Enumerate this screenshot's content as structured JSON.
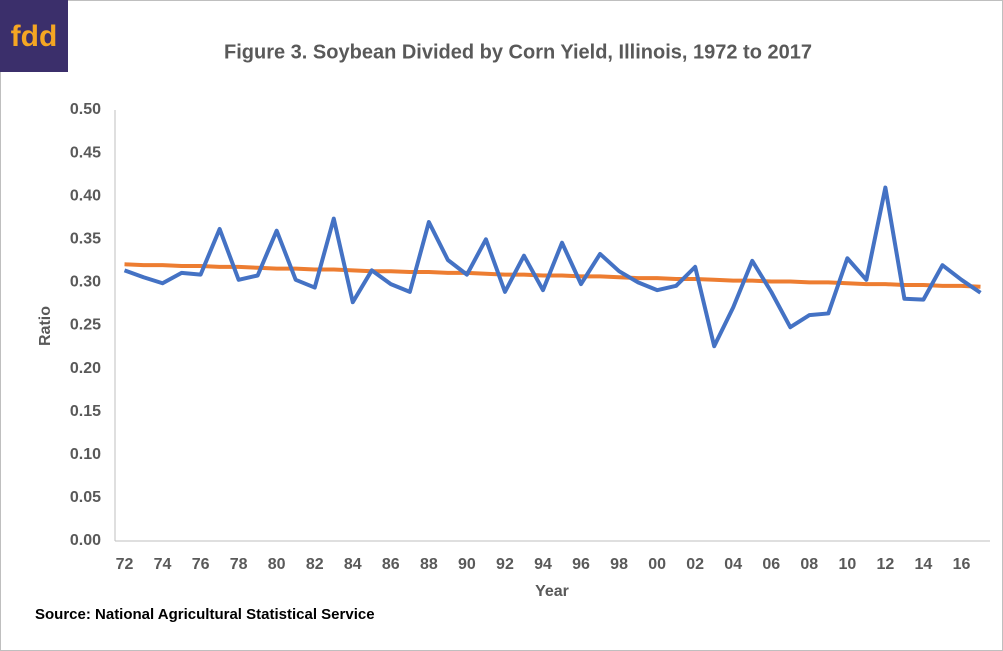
{
  "logo": "fdd",
  "source": "Source: National Agricultural Statistical Service",
  "chart_data": {
    "type": "line",
    "title": "Figure 3.  Soybean Divided by Corn Yield, Illinois, 1972 to 2017",
    "x_label": "Year",
    "y_label": "Ratio",
    "categories": [
      "72",
      null,
      "74",
      null,
      "76",
      null,
      "78",
      null,
      "80",
      null,
      "82",
      null,
      "84",
      null,
      "86",
      null,
      "88",
      null,
      "90",
      null,
      "92",
      null,
      "94",
      null,
      "96",
      null,
      "98",
      null,
      "00",
      null,
      "02",
      null,
      "04",
      null,
      "06",
      null,
      "08",
      null,
      "10",
      null,
      "12",
      null,
      "14",
      null,
      "16",
      null
    ],
    "series": [
      {
        "color": "#4472c4",
        "values": [
          0.314,
          0.306,
          0.299,
          0.311,
          0.309,
          0.362,
          0.303,
          0.308,
          0.36,
          0.303,
          0.294,
          0.374,
          0.277,
          0.314,
          0.298,
          0.289,
          0.37,
          0.326,
          0.309,
          0.35,
          0.289,
          0.331,
          0.291,
          0.346,
          0.298,
          0.333,
          0.313,
          0.3,
          0.291,
          0.296,
          0.318,
          0.226,
          0.271,
          0.325,
          0.289,
          0.248,
          0.262,
          0.264,
          0.328,
          0.303,
          0.41,
          0.281,
          0.28,
          0.32,
          0.303,
          0.288
        ]
      },
      {
        "color": "#ed7d31",
        "values": [
          0.321,
          0.32,
          0.32,
          0.319,
          0.319,
          0.318,
          0.318,
          0.317,
          0.316,
          0.316,
          0.315,
          0.315,
          0.314,
          0.313,
          0.313,
          0.312,
          0.312,
          0.311,
          0.311,
          0.31,
          0.309,
          0.309,
          0.308,
          0.308,
          0.307,
          0.307,
          0.306,
          0.305,
          0.305,
          0.304,
          0.304,
          0.303,
          0.302,
          0.302,
          0.301,
          0.301,
          0.3,
          0.3,
          0.299,
          0.298,
          0.298,
          0.297,
          0.297,
          0.296,
          0.296,
          0.295
        ]
      }
    ],
    "ylim": [
      0,
      0.5
    ],
    "yticks": [
      {
        "value": 0,
        "label": "0.00"
      },
      {
        "value": 0.05,
        "label": "0.05"
      },
      {
        "value": 0.1,
        "label": "0.10"
      },
      {
        "value": 0.15,
        "label": "0.15"
      },
      {
        "value": 0.2,
        "label": "0.20"
      },
      {
        "value": 0.25,
        "label": "0.25"
      },
      {
        "value": 0.3,
        "label": "0.30"
      },
      {
        "value": 0.35,
        "label": "0.35"
      },
      {
        "value": 0.4,
        "label": "0.40"
      },
      {
        "value": 0.45,
        "label": "0.45"
      },
      {
        "value": 0.5,
        "label": "0.50"
      }
    ],
    "grid": false
  }
}
